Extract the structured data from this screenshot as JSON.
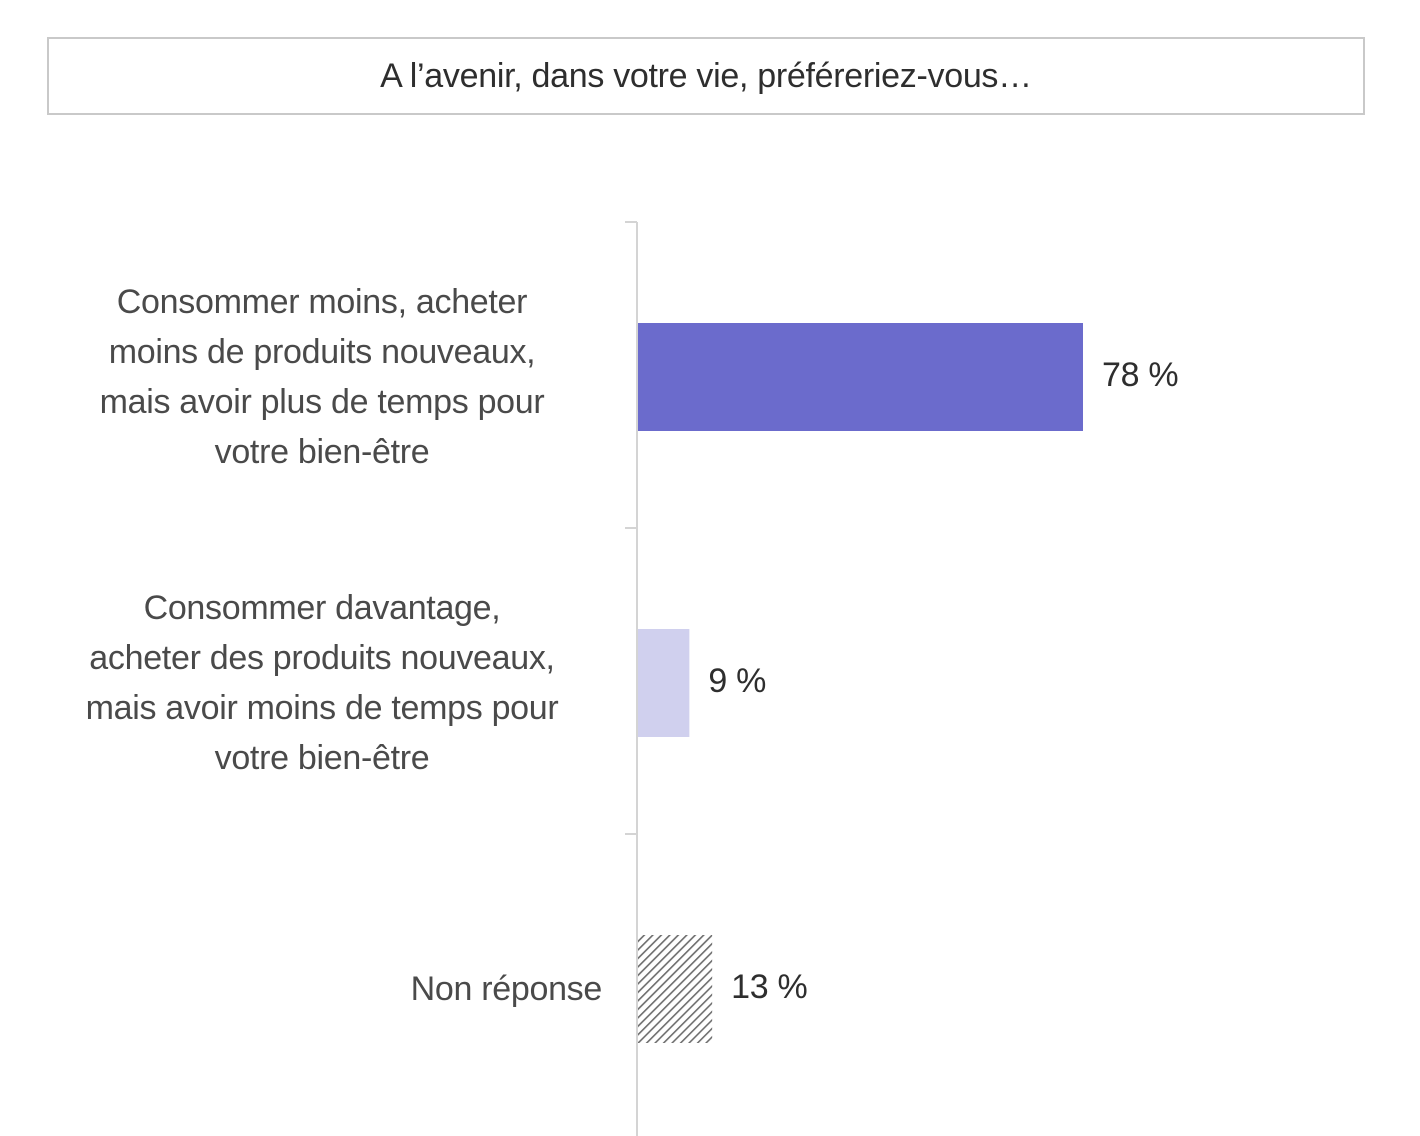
{
  "chart_data": {
    "type": "bar",
    "orientation": "horizontal",
    "title": "A l’avenir, dans votre vie, préféreriez-vous…",
    "categories": [
      "Consommer moins, acheter moins de produits nouveaux, mais avoir plus de temps pour votre bien-être",
      "Consommer davantage, acheter des produits nouveaux, mais avoir moins de temps pour votre bien-être",
      "Non réponse"
    ],
    "category_lines": [
      [
        "Consommer moins, acheter",
        "moins de produits nouveaux,",
        "mais avoir plus de temps pour",
        "votre bien-être"
      ],
      [
        "Consommer davantage,",
        "acheter des produits nouveaux,",
        "mais avoir moins de temps pour",
        "votre bien-être"
      ],
      [
        "Non réponse"
      ]
    ],
    "values": [
      78,
      9,
      13
    ],
    "value_labels": [
      "78 %",
      "9 %",
      "13 %"
    ],
    "unit": "%",
    "xlim": [
      0,
      100
    ],
    "grid": false,
    "legend": "none",
    "colors": [
      "#6b6bcc",
      "#d0d0ee",
      "hatched-gray"
    ]
  }
}
